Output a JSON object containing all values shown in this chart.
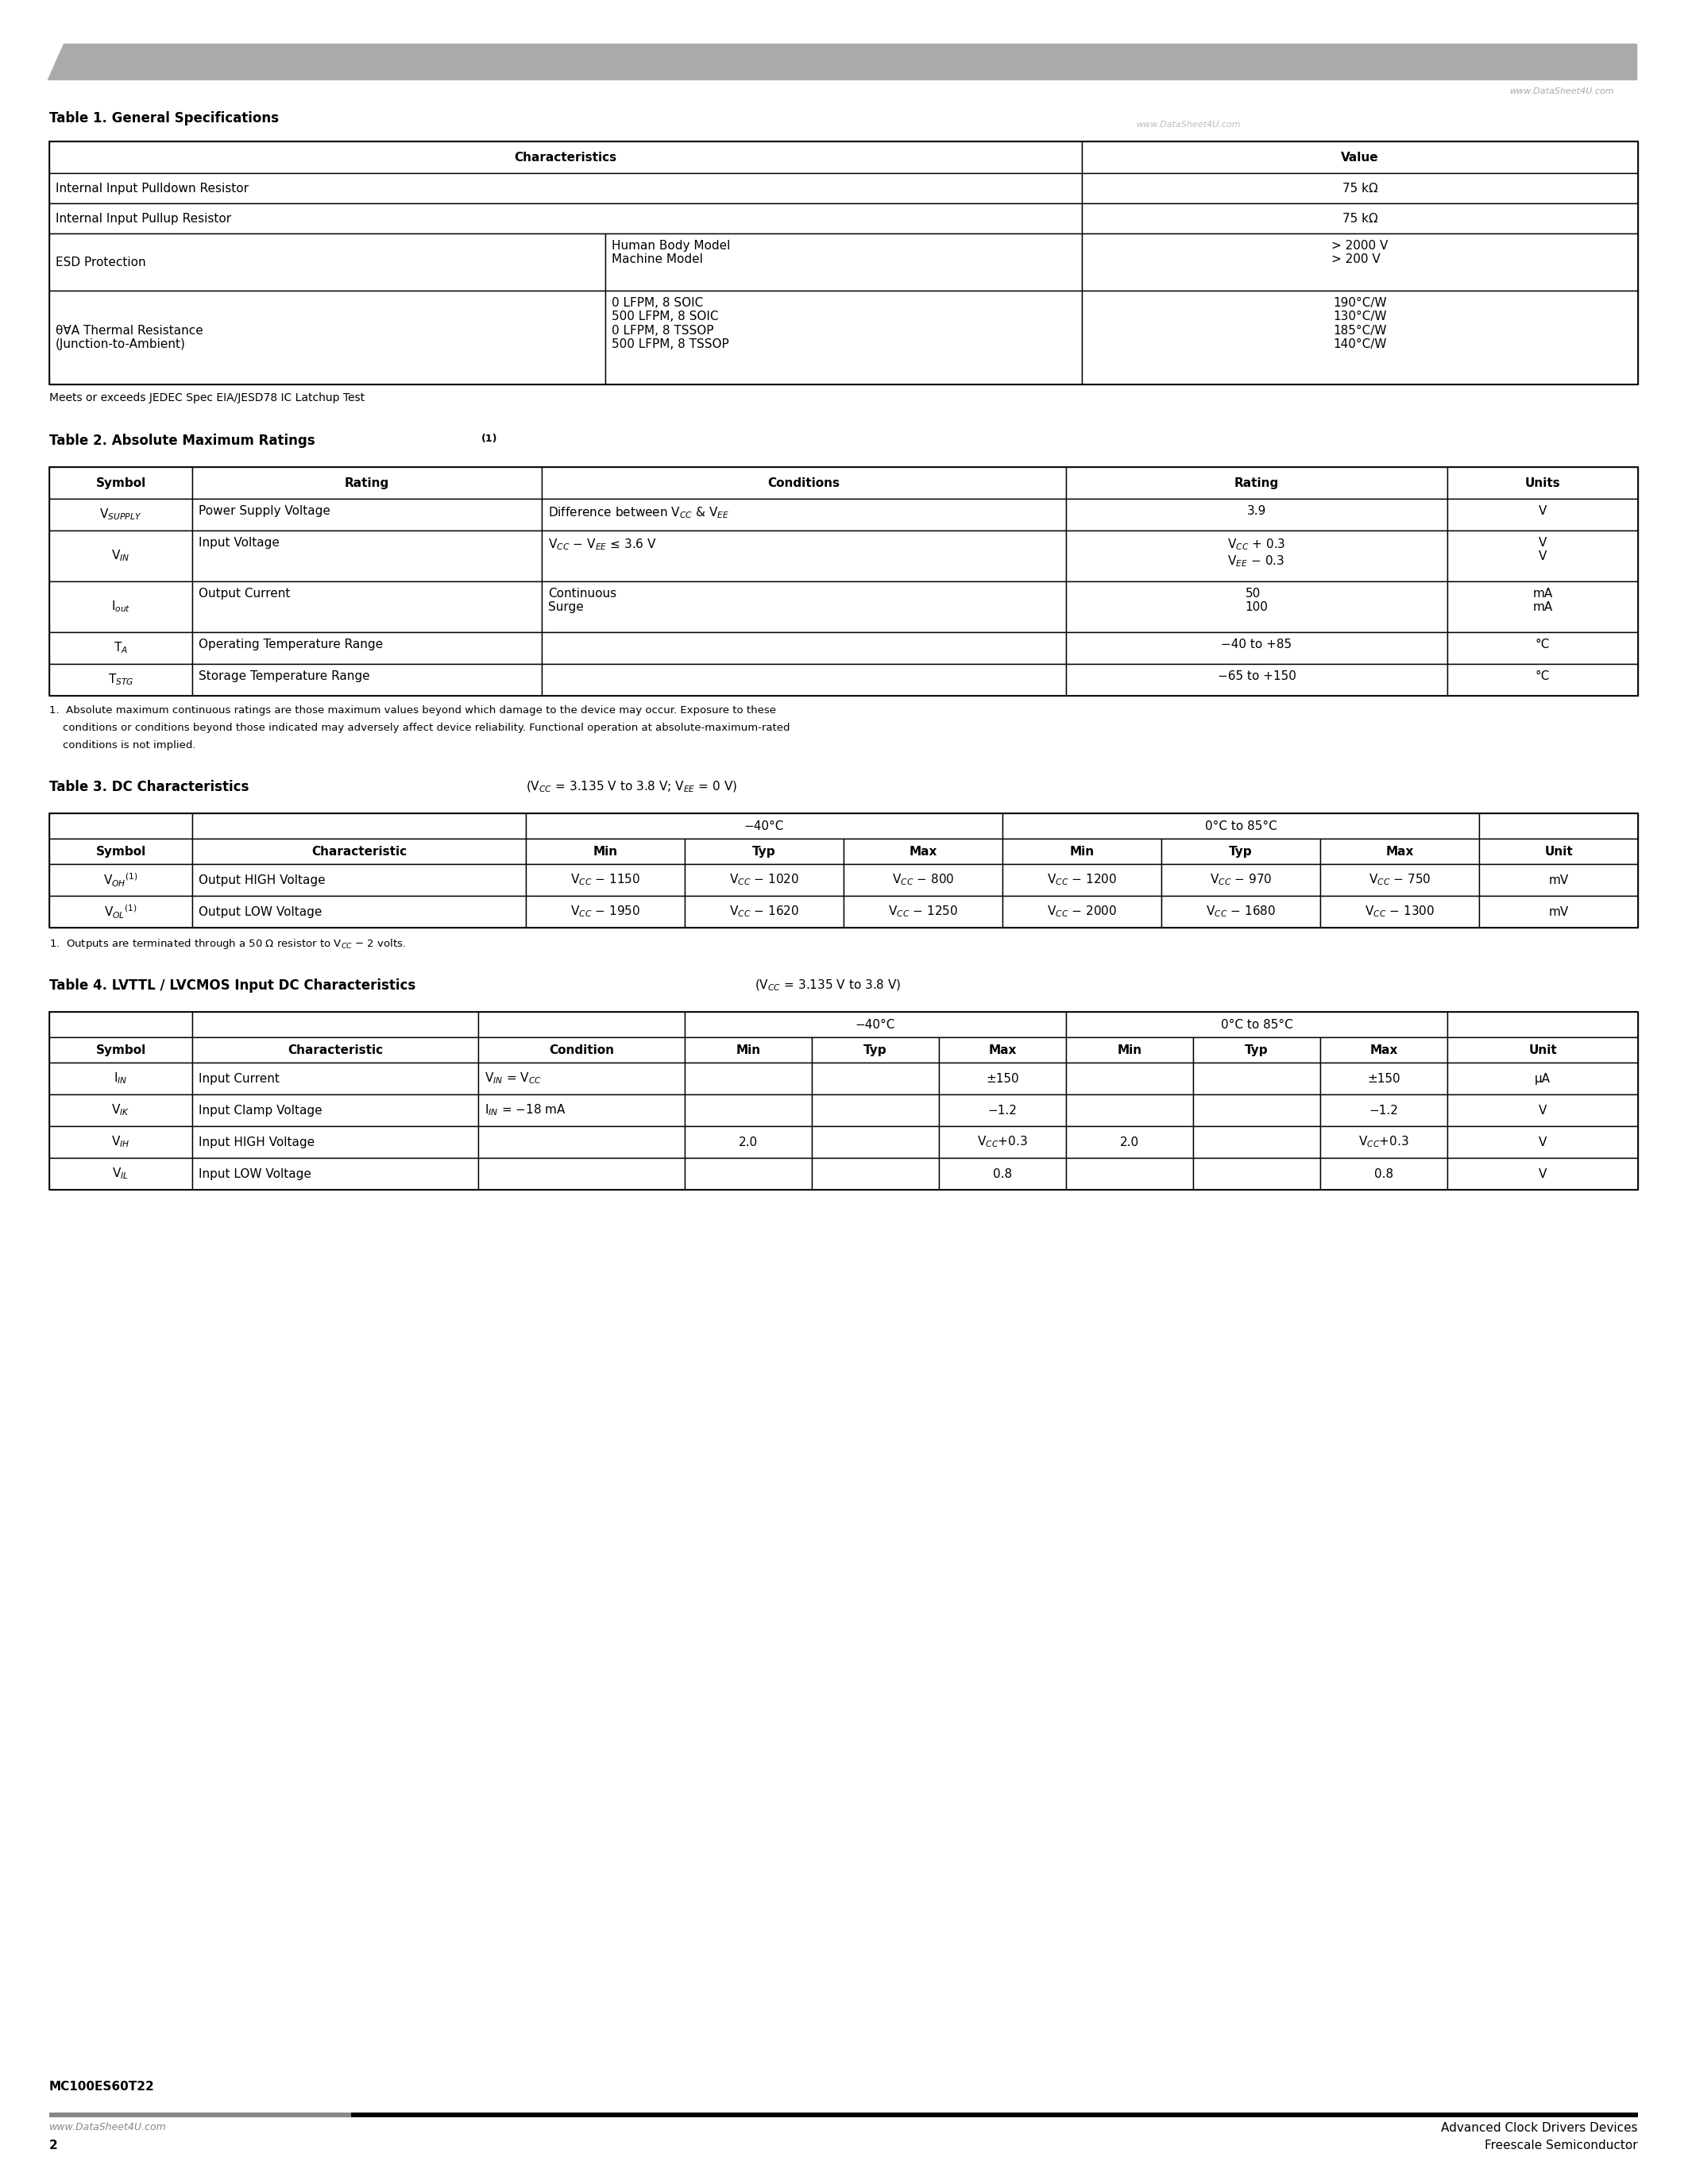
{
  "page_title": "MC100ES60T22",
  "header_bar_color": "#aaaaaa",
  "watermark": "www.DataSheet4U.com",
  "footer_left_line1": "www.DataSheet4U.com",
  "footer_left_line2": "2",
  "footer_right_line1": "Advanced Clock Drivers Devices",
  "footer_right_line2": "Freescale Semiconductor",
  "table1_title": "Table 1. General Specifications",
  "table1_note": "Meets or exceeds JEDEC Spec EIA/JESD78 IC Latchup Test",
  "table2_title": "Table 2. Absolute Maximum Ratings",
  "table3_title": "Table 3. DC Characteristics",
  "table4_title": "Table 4. LVTTL / LVCMOS Input DC Characteristics"
}
